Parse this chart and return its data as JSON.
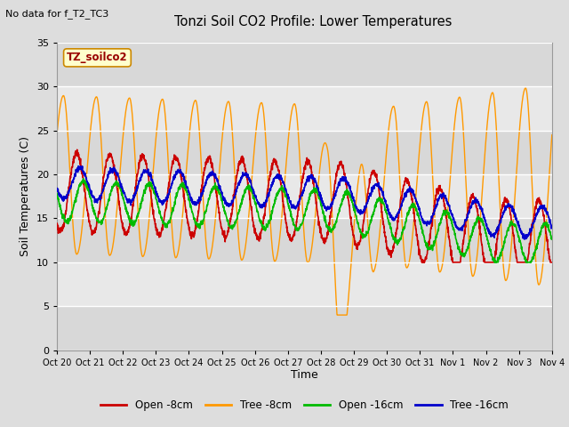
{
  "title": "Tonzi Soil CO2 Profile: Lower Temperatures",
  "subtitle": "No data for f_T2_TC3",
  "ylabel": "Soil Temperatures (C)",
  "xlabel": "Time",
  "ylim": [
    0,
    35
  ],
  "yticks": [
    0,
    5,
    10,
    15,
    20,
    25,
    30,
    35
  ],
  "xtick_labels": [
    "Oct 20",
    "Oct 21",
    "Oct 22",
    "Oct 23",
    "Oct 24",
    "Oct 25",
    "Oct 26",
    "Oct 27",
    "Oct 28",
    "Oct 29",
    "Oct 30",
    "Oct 31",
    "Nov 1",
    "Nov 2",
    "Nov 3",
    "Nov 4"
  ],
  "legend_box_label": "TZ_soilco2",
  "legend_entries": [
    "Open -8cm",
    "Tree -8cm",
    "Open -16cm",
    "Tree -16cm"
  ],
  "legend_colors": [
    "#cc0000",
    "#ff9900",
    "#00bb00",
    "#0000cc"
  ],
  "line_colors": {
    "open8": "#cc0000",
    "tree8": "#ff9900",
    "open16": "#00bb00",
    "tree16": "#0000cc"
  },
  "background_color": "#dddddd",
  "plot_bg_color": "#e8e8e8",
  "grid_color": "#ffffff",
  "n_days": 15,
  "points_per_day": 144,
  "band_colors": [
    "#d8d8d8",
    "#e8e8e8"
  ]
}
